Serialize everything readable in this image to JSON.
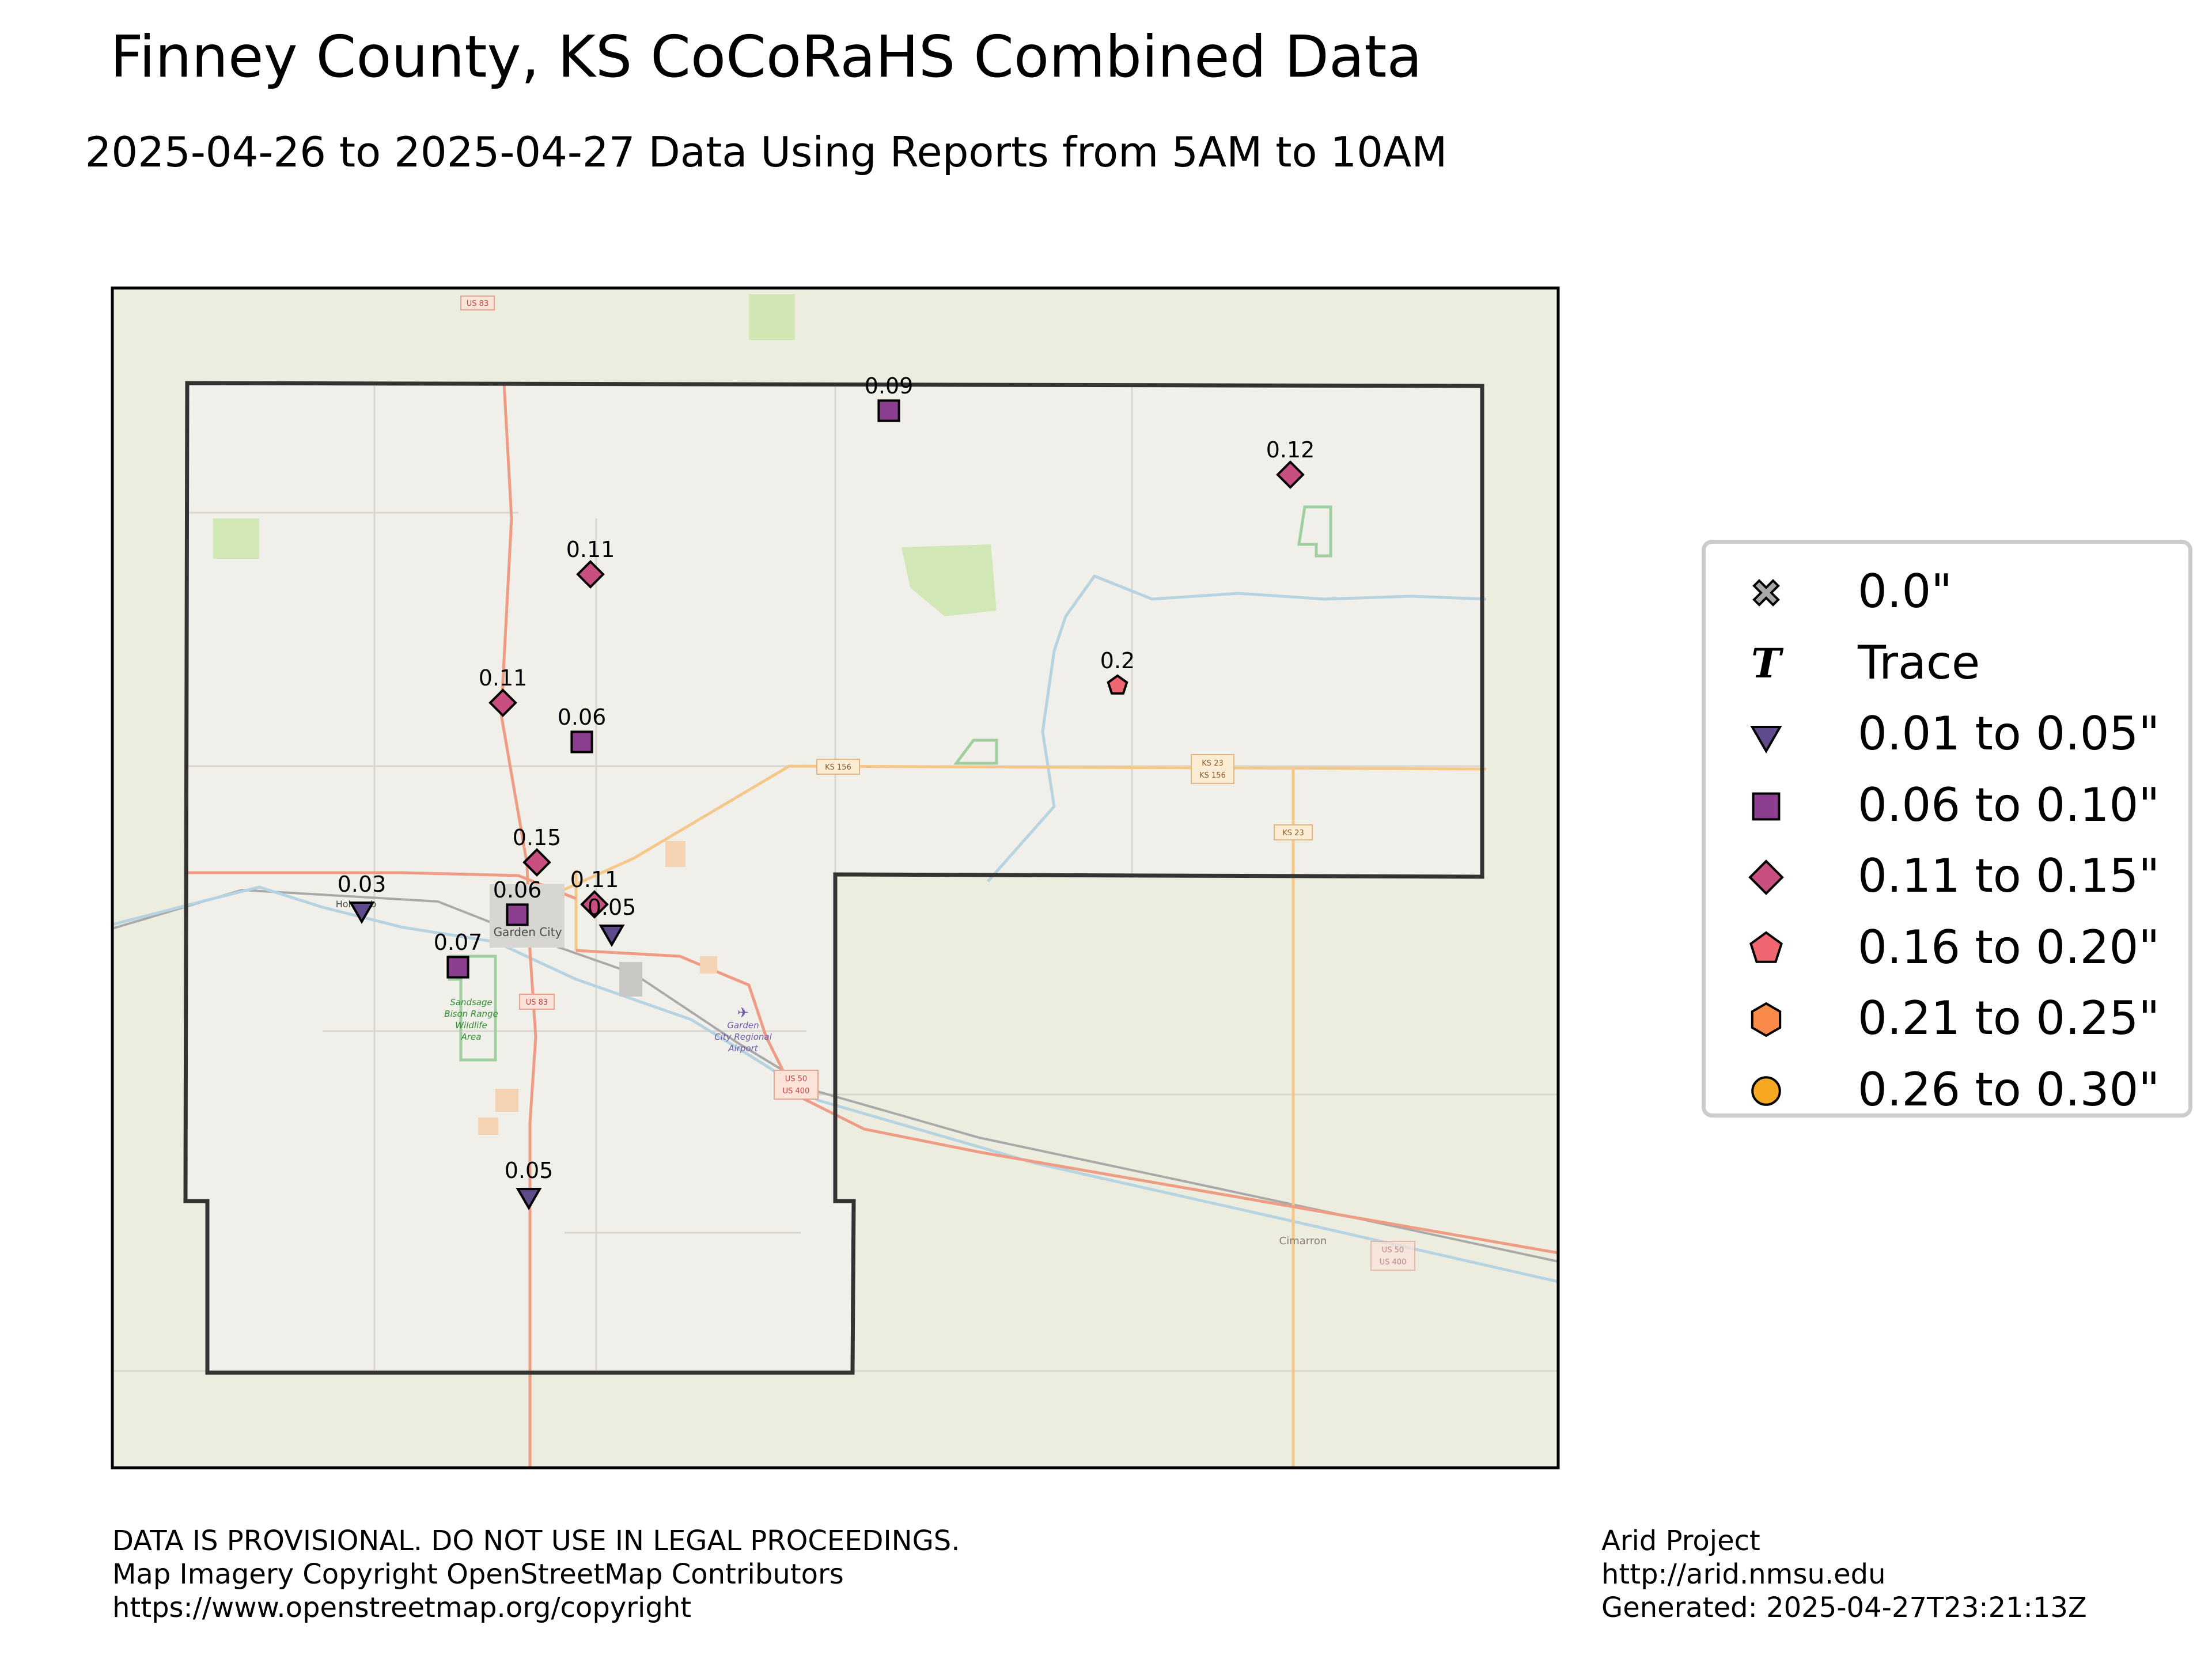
{
  "title": "Finney County, KS CoCoRaHS Combined Data",
  "subtitle": "2025-04-26 to 2025-04-27 Data Using Reports from 5AM to 10AM",
  "legend": [
    {
      "label": "0.0\"",
      "symbol": "x-icon",
      "color": "#a8a8a8"
    },
    {
      "label": "Trace",
      "symbol": "T-icon",
      "color": "#000000"
    },
    {
      "label": "0.01 to 0.05\"",
      "symbol": "triangle-down-icon",
      "color": "#5f4a8b"
    },
    {
      "label": "0.06 to 0.10\"",
      "symbol": "square-icon",
      "color": "#8c3f8f"
    },
    {
      "label": "0.11 to 0.15\"",
      "symbol": "diamond-icon",
      "color": "#c94f80"
    },
    {
      "label": "0.16 to 0.20\"",
      "symbol": "pentagon-icon",
      "color": "#f06670"
    },
    {
      "label": "0.21 to 0.25\"",
      "symbol": "hexagon-icon",
      "color": "#f98a4a"
    },
    {
      "label": "0.26 to 0.30\"",
      "symbol": "circle-icon",
      "color": "#f6a823"
    }
  ],
  "stations": [
    {
      "value": "0.09",
      "category": 3
    },
    {
      "value": "0.12",
      "category": 4
    },
    {
      "value": "0.11",
      "category": 4
    },
    {
      "value": "0.2",
      "category": 5
    },
    {
      "value": "0.11",
      "category": 4
    },
    {
      "value": "0.06",
      "category": 3
    },
    {
      "value": "0.15",
      "category": 4
    },
    {
      "value": "0.03",
      "category": 2
    },
    {
      "value": "0.06",
      "category": 3
    },
    {
      "value": "0.11",
      "category": 4
    },
    {
      "value": "0.05",
      "category": 2
    },
    {
      "value": "0.07",
      "category": 3
    },
    {
      "value": "0.05",
      "category": 2
    }
  ],
  "map_labels": {
    "garden_city": "Garden City",
    "holcomb": "Holcomb",
    "cimarron": "Cimarron",
    "wildlife_area": [
      "Sandsage",
      "Bison Range",
      "Wildlife",
      "Area"
    ],
    "airport": [
      "Garden",
      "City Regional",
      "Airport"
    ],
    "shields": [
      "US 83",
      "KS 156",
      "KS 23",
      "KS 156",
      "KS 23",
      "US 83",
      "US 50",
      "US 400",
      "US 50",
      "US 400"
    ]
  },
  "footer": {
    "left": [
      "DATA IS PROVISIONAL. DO NOT USE IN LEGAL PROCEEDINGS.",
      "Map Imagery Copyright OpenStreetMap Contributors",
      "https://www.openstreetmap.org/copyright"
    ],
    "right": [
      "Arid Project",
      "http://arid.nmsu.edu",
      "Generated: 2025-04-27T23:21:13Z"
    ]
  }
}
